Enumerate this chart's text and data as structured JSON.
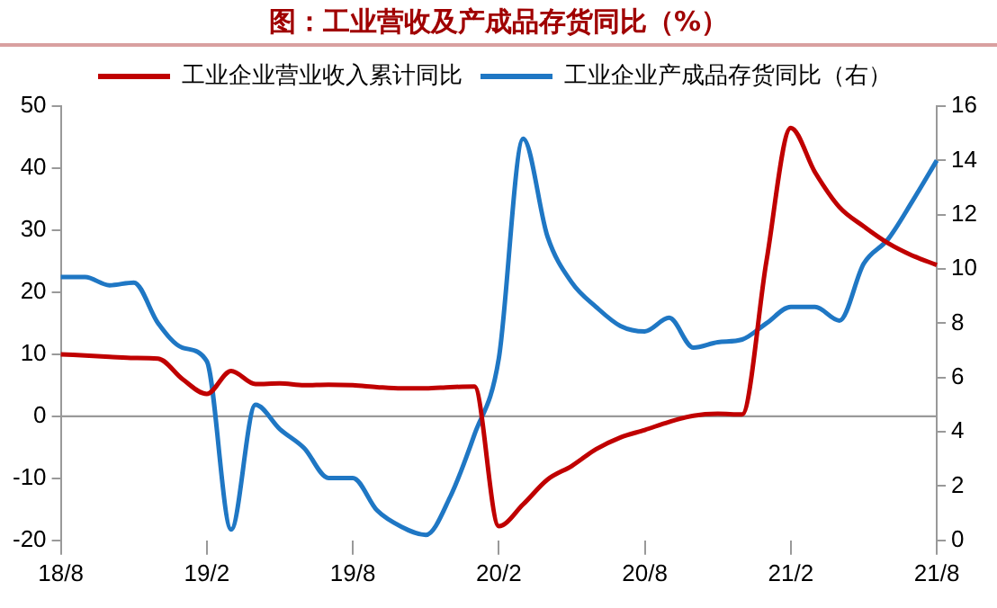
{
  "chart_data": {
    "type": "line",
    "title": "图：工业营收及产成品存货同比（%）",
    "categories": [
      "18/8",
      null,
      null,
      null,
      null,
      null,
      "19/2",
      null,
      null,
      null,
      null,
      null,
      "19/8",
      null,
      null,
      null,
      null,
      null,
      "20/2",
      null,
      null,
      null,
      null,
      null,
      "20/8",
      null,
      null,
      null,
      null,
      null,
      "21/2",
      null,
      null,
      null,
      null,
      null,
      "21/8"
    ],
    "series": [
      {
        "name": "工业企业营业收入累计同比",
        "color": "#c00000",
        "values": [
          10,
          9.8,
          9.6,
          9.4,
          9.3,
          6,
          3.6,
          7.3,
          5.2,
          5.3,
          5,
          5.1,
          5,
          4.7,
          4.5,
          4.5,
          4.7,
          4.8,
          -17.7,
          -14.2,
          -10.2,
          -8,
          -5.3,
          -3.4,
          -2.2,
          -0.9,
          0.1,
          0.4,
          0.3,
          25,
          46.5,
          39.3,
          33.7,
          30.6,
          27.9,
          25.9,
          24.4
        ]
      },
      {
        "name": "工业企业产成品存货同比（右）",
        "color": "#1f77c4",
        "axis": "y2",
        "values": [
          9.7,
          9.7,
          9.4,
          9.5,
          8.0,
          7.1,
          6.6,
          0.4,
          5.0,
          4.1,
          3.4,
          2.3,
          2.3,
          1.1,
          0.5,
          0.2,
          1.6,
          3.9,
          6.7,
          14.8,
          11.2,
          9.5,
          8.6,
          7.9,
          7.7,
          8.2,
          7.1,
          7.3,
          7.4,
          8.0,
          8.6,
          8.6,
          8.1,
          10.2,
          11.1,
          12.5,
          14.0
        ]
      }
    ],
    "ylim": [
      -20,
      50
    ],
    "yticks": [
      -20,
      -10,
      0,
      10,
      20,
      30,
      40,
      50
    ],
    "y2lim": [
      0,
      16
    ],
    "y2ticks": [
      0,
      2,
      4,
      6,
      8,
      10,
      12,
      14,
      16
    ],
    "ref_lines": [
      {
        "axis": "y",
        "value": 0,
        "color": "#999999"
      }
    ],
    "grid": false,
    "legend": "top",
    "marker": "none",
    "line_style": "solid"
  }
}
